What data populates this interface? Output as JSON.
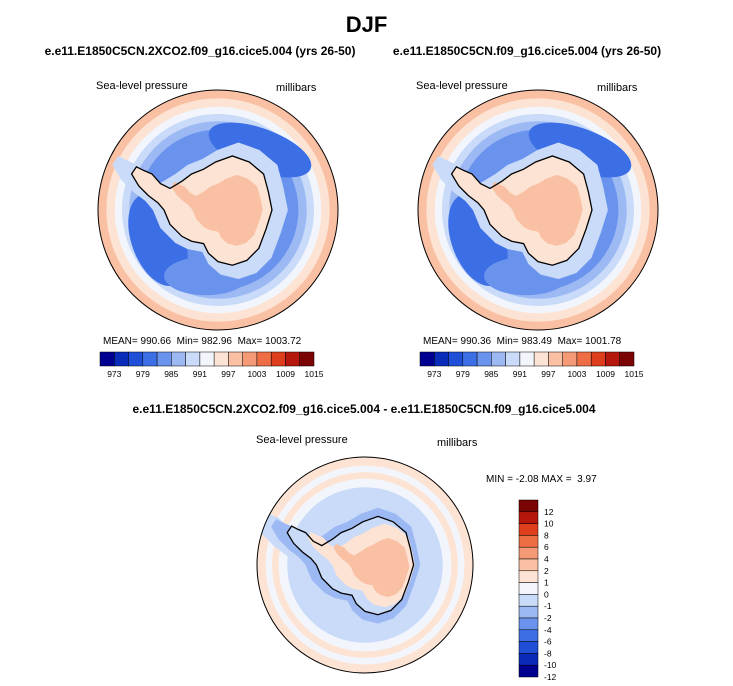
{
  "page_title": "DJF",
  "chart_data": [
    {
      "type": "heatmap",
      "id": "panel-2xco2",
      "title": "e.e11.E1850C5CN.2XCO2.f09_g16.cice5.004 (yrs 26-50)",
      "field_label": "Sea-level pressure",
      "units": "millibars",
      "projection": "south polar stereographic",
      "stats": {
        "mean_label": "MEAN=",
        "mean": "990.66",
        "min_label": "Min=",
        "min": "982.96",
        "max_label": "Max=",
        "max": "1003.72"
      },
      "colorbar": {
        "orientation": "horizontal",
        "levels": [
          973,
          976,
          979,
          982,
          985,
          988,
          991,
          994,
          997,
          1000,
          1003,
          1006,
          1009,
          1012,
          1015
        ],
        "tick_labels": [
          "973",
          "979",
          "985",
          "991",
          "997",
          "1003",
          "1009",
          "1015"
        ]
      }
    },
    {
      "type": "heatmap",
      "id": "panel-control",
      "title": "e.e11.E1850C5CN.f09_g16.cice5.004 (yrs 26-50)",
      "field_label": "Sea-level pressure",
      "units": "millibars",
      "projection": "south polar stereographic",
      "stats": {
        "mean_label": "MEAN=",
        "mean": "990.36",
        "min_label": "Min=",
        "min": "983.49",
        "max_label": "Max=",
        "max": "1001.78"
      },
      "colorbar": {
        "orientation": "horizontal",
        "levels": [
          973,
          976,
          979,
          982,
          985,
          988,
          991,
          994,
          997,
          1000,
          1003,
          1006,
          1009,
          1012,
          1015
        ],
        "tick_labels": [
          "973",
          "979",
          "985",
          "991",
          "997",
          "1003",
          "1009",
          "1015"
        ]
      }
    },
    {
      "type": "heatmap",
      "id": "panel-diff",
      "title": "e.e11.E1850C5CN.2XCO2.f09_g16.cice5.004 - e.e11.E1850C5CN.f09_g16.cice5.004",
      "field_label": "Sea-level pressure",
      "units": "millibars",
      "projection": "south polar stereographic",
      "stats": {
        "min_label": "MIN =",
        "min": "-2.08",
        "max_label": "MAX =",
        "max": "3.97"
      },
      "colorbar": {
        "orientation": "vertical",
        "levels": [
          -12,
          -10,
          -8,
          -6,
          -4,
          -2,
          -1,
          0,
          1,
          2,
          4,
          6,
          8,
          10,
          12
        ],
        "tick_labels": [
          "12",
          "10",
          "8",
          "6",
          "4",
          "2",
          "1",
          "0",
          "-1",
          "-2",
          "-4",
          "-6",
          "-8",
          "-10",
          "-12"
        ]
      }
    }
  ],
  "palette": [
    "#000090",
    "#0a2bb8",
    "#1f4fd6",
    "#3c6fe6",
    "#6a93ee",
    "#9cb9f4",
    "#c9dbf8",
    "#f2f6fc",
    "#fde3d3",
    "#f9c0a4",
    "#f59a76",
    "#ef6d44",
    "#df3e1c",
    "#b5170c",
    "#7a0303"
  ],
  "coastline_color": "#000000"
}
